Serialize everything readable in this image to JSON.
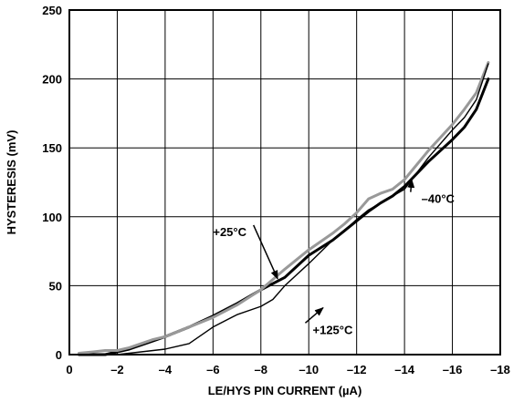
{
  "chart_data": {
    "type": "line",
    "title": "",
    "xlabel": "LE/HYS PIN CURRENT (µA)",
    "ylabel": "HYSTERESIS (mV)",
    "xlim": [
      0,
      -18
    ],
    "ylim": [
      0,
      250
    ],
    "grid": true,
    "x_ticks": [
      0,
      -2,
      -4,
      -6,
      -8,
      -10,
      -12,
      -14,
      -16,
      -18
    ],
    "x_tick_labels": [
      "0",
      "–2",
      "–4",
      "–6",
      "–8",
      "–10",
      "–12",
      "–14",
      "–16",
      "–18"
    ],
    "y_ticks": [
      0,
      50,
      100,
      150,
      200,
      250
    ],
    "y_tick_labels": [
      "0",
      "50",
      "100",
      "150",
      "200",
      "250"
    ],
    "series": [
      {
        "name": "–40°C",
        "color": "#000000",
        "stroke_weight": "heavy",
        "x": [
          -0.4,
          -1.0,
          -1.5,
          -2.0,
          -2.5,
          -3.0,
          -3.5,
          -4.0,
          -5.0,
          -6.0,
          -7.0,
          -8.0,
          -9.0,
          -10.0,
          -11.0,
          -11.5,
          -12.0,
          -12.5,
          -13.0,
          -13.5,
          -14.0,
          -15.0,
          -16.0,
          -16.5,
          -17.0,
          -17.5
        ],
        "y": [
          0,
          0,
          0,
          2,
          4,
          7,
          10,
          13,
          20,
          28,
          37,
          47,
          56,
          72,
          83,
          90,
          97,
          104,
          110,
          115,
          122,
          140,
          156,
          165,
          178,
          200
        ]
      },
      {
        "name": "+25°C",
        "color": "#999999",
        "stroke_weight": "heavy",
        "x": [
          -0.4,
          -1.0,
          -1.5,
          -2.0,
          -2.5,
          -3.0,
          -3.5,
          -4.0,
          -5.0,
          -6.0,
          -7.0,
          -8.0,
          -9.0,
          -10.0,
          -11.0,
          -11.5,
          -12.0,
          -12.5,
          -13.0,
          -13.5,
          -14.0,
          -15.0,
          -16.0,
          -16.5,
          -17.0,
          -17.5
        ],
        "y": [
          1,
          2,
          3,
          3,
          5,
          8,
          11,
          13,
          20,
          27,
          36,
          47,
          62,
          76,
          88,
          95,
          103,
          113,
          117,
          120,
          127,
          148,
          167,
          178,
          190,
          212
        ]
      },
      {
        "name": "+125°C",
        "color": "#000000",
        "stroke_weight": "thin",
        "x": [
          -0.4,
          -1.0,
          -1.5,
          -2.0,
          -2.5,
          -3.0,
          -3.5,
          -4.0,
          -5.0,
          -6.0,
          -7.0,
          -8.0,
          -8.5,
          -9.0,
          -10.0,
          -11.0,
          -11.5,
          -12.0,
          -12.5,
          -13.0,
          -13.5,
          -14.0,
          -15.0,
          -16.0,
          -16.5,
          -17.0,
          -17.5
        ],
        "y": [
          0,
          0,
          0,
          0,
          1,
          2,
          3,
          4,
          8,
          20,
          29,
          35,
          40,
          50,
          66,
          83,
          90,
          98,
          105,
          110,
          115,
          120,
          143,
          163,
          172,
          185,
          211
        ]
      }
    ],
    "annotations": [
      {
        "text": "–40°C",
        "series": "–40°C",
        "point": [
          -14.3,
          127
        ],
        "label_pos": [
          -15.4,
          110
        ]
      },
      {
        "text": "+25°C",
        "series": "+25°C",
        "point": [
          -8.7,
          55
        ],
        "label_pos": [
          -6.7,
          86
        ]
      },
      {
        "text": "+125°C",
        "series": "+125°C",
        "point": [
          -10.6,
          34
        ],
        "label_pos": [
          -11.0,
          15
        ]
      }
    ]
  }
}
